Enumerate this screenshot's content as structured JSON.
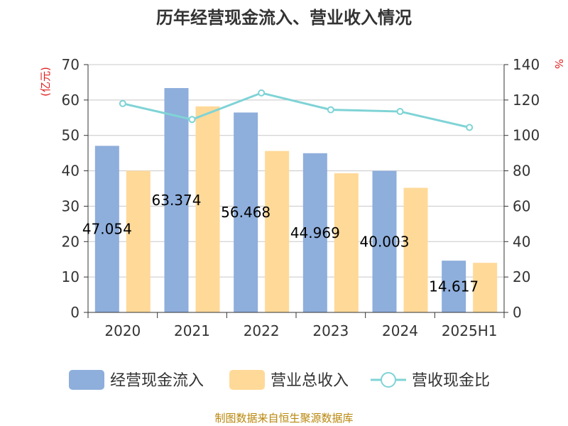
{
  "title": "历年经营现金流入、营业收入情况",
  "source": "制图数据来自恒生聚源数据库",
  "chart_data": {
    "type": "bar",
    "categories": [
      "2020",
      "2021",
      "2022",
      "2023",
      "2024",
      "2025H1"
    ],
    "y_left": {
      "unit": "(亿元)",
      "range": [
        0,
        70
      ],
      "ticks": [
        0,
        10,
        20,
        30,
        40,
        50,
        60,
        70
      ]
    },
    "y_right": {
      "unit": "%",
      "range": [
        0,
        140
      ],
      "ticks": [
        0,
        20,
        40,
        60,
        80,
        100,
        120,
        140
      ]
    },
    "series": [
      {
        "name": "经营现金流入",
        "type": "bar",
        "axis": "left",
        "color": "#8eaedc",
        "values": [
          47.054,
          63.374,
          56.468,
          44.969,
          40.003,
          14.617
        ],
        "labels": [
          "47.054",
          "63.374",
          "56.468",
          "44.969",
          "40.003",
          "14.617"
        ]
      },
      {
        "name": "营业总收入",
        "type": "bar",
        "axis": "left",
        "color": "#ffd998",
        "values": [
          40.0,
          58.2,
          45.6,
          39.3,
          35.2,
          14.0
        ]
      },
      {
        "name": "营收现金比",
        "type": "line",
        "axis": "right",
        "color": "#7fd3d6",
        "values": [
          118,
          109,
          124,
          114.5,
          113.5,
          104.5
        ]
      }
    ],
    "grid": true,
    "legend_position": "bottom"
  }
}
